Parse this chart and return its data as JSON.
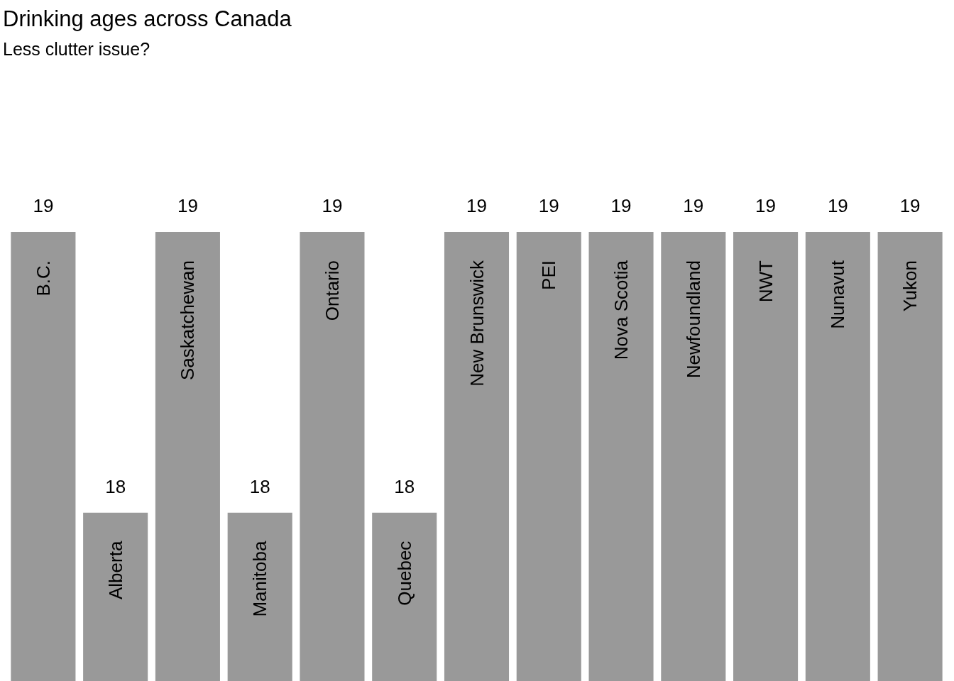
{
  "chart_data": {
    "type": "bar",
    "title": "Drinking ages across Canada",
    "subtitle": "Less clutter issue?",
    "categories": [
      "B.C.",
      "Alberta",
      "Saskatchewan",
      "Manitoba",
      "Ontario",
      "Quebec",
      "New Brunswick",
      "PEI",
      "Nova Scotia",
      "Newfoundland",
      "NWT",
      "Nunavut",
      "Yukon"
    ],
    "values": [
      19,
      18,
      19,
      18,
      19,
      18,
      19,
      19,
      19,
      19,
      19,
      19,
      19
    ],
    "color": "#999999",
    "ylim": [
      17.4,
      19
    ],
    "data_labels": true
  }
}
